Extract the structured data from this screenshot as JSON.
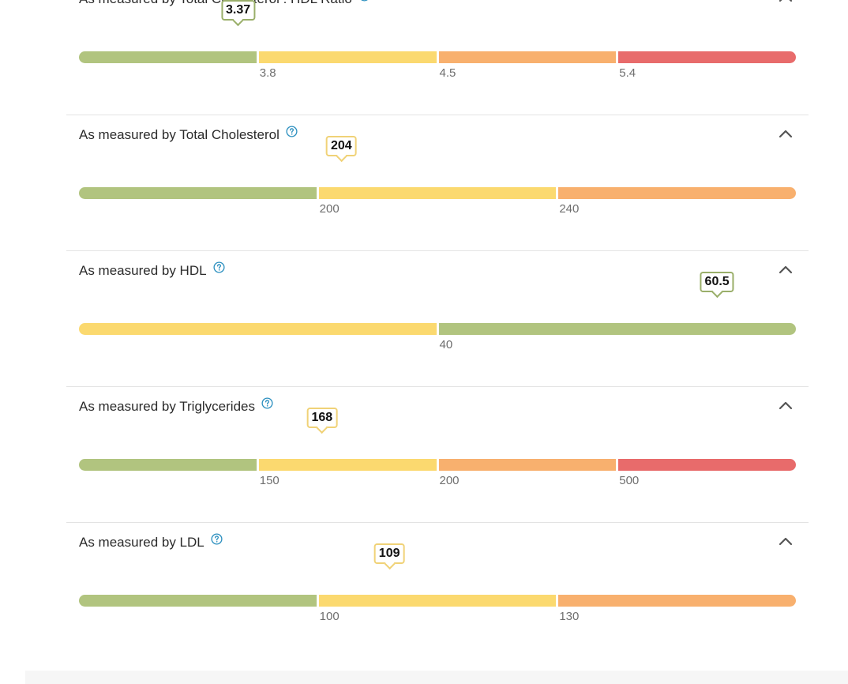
{
  "colors": {
    "green": "#b1c47f",
    "yellow": "#fbd96f",
    "orange": "#f8b06e",
    "red": "#e86b6b",
    "help_icon": "#2b8fbf"
  },
  "metrics": [
    {
      "title": "As measured by Total Cholesterol : HDL Ratio",
      "value": "3.37",
      "value_fraction": 0.222,
      "badge_color": "green",
      "segments": [
        "green",
        "yellow",
        "orange",
        "red"
      ],
      "ticks": [
        "3.8",
        "4.5",
        "5.4"
      ]
    },
    {
      "title": "As measured by Total Cholesterol",
      "value": "204",
      "value_fraction": 0.366,
      "badge_color": "yellow",
      "segments": [
        "green",
        "yellow",
        "orange"
      ],
      "ticks": [
        "200",
        "240"
      ]
    },
    {
      "title": "As measured by HDL",
      "value": "60.5",
      "value_fraction": 0.89,
      "badge_color": "green",
      "segments": [
        "yellow",
        "green"
      ],
      "ticks": [
        "40"
      ]
    },
    {
      "title": "As measured by Triglycerides",
      "value": "168",
      "value_fraction": 0.339,
      "badge_color": "yellow",
      "segments": [
        "green",
        "yellow",
        "orange",
        "red"
      ],
      "ticks": [
        "150",
        "200",
        "500"
      ]
    },
    {
      "title": "As measured by LDL",
      "value": "109",
      "value_fraction": 0.433,
      "badge_color": "yellow",
      "segments": [
        "green",
        "yellow",
        "orange"
      ],
      "ticks": [
        "100",
        "130"
      ]
    }
  ]
}
